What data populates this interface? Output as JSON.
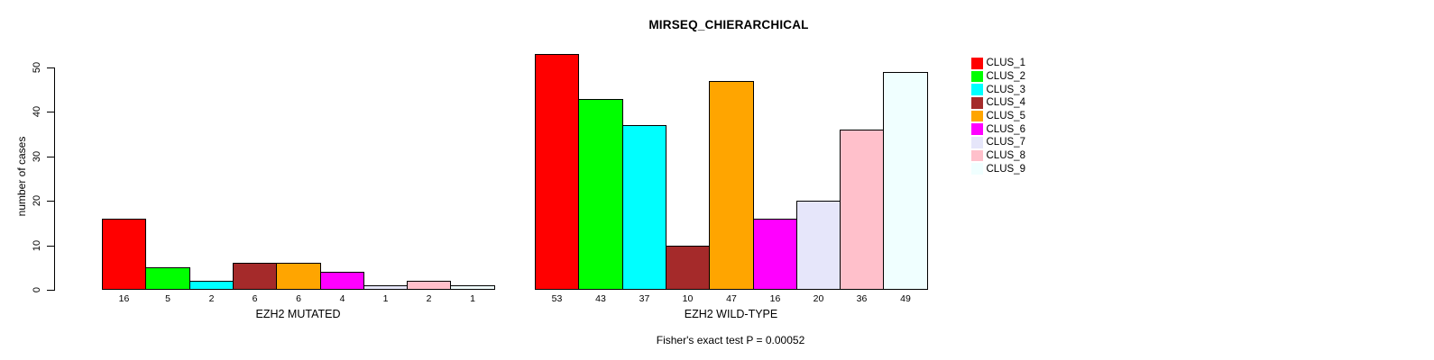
{
  "chart_data": {
    "type": "bar",
    "title": "MIRSEQ_CHIERARCHICAL",
    "ylabel": "number of cases",
    "ylim": [
      0,
      55
    ],
    "yticks": [
      0,
      10,
      20,
      30,
      40,
      50
    ],
    "grid": false,
    "legend_position": "right",
    "bar_value_labels": true,
    "groups": [
      {
        "label": "EZH2 MUTATED",
        "values": [
          16,
          5,
          2,
          6,
          6,
          4,
          1,
          2,
          1
        ]
      },
      {
        "label": "EZH2 WILD-TYPE",
        "values": [
          53,
          43,
          37,
          10,
          47,
          16,
          20,
          36,
          49
        ]
      }
    ],
    "series": [
      "CLUS_1",
      "CLUS_2",
      "CLUS_3",
      "CLUS_4",
      "CLUS_5",
      "CLUS_6",
      "CLUS_7",
      "CLUS_8",
      "CLUS_9"
    ],
    "colors": [
      "#FF0000",
      "#00FF00",
      "#00FFFF",
      "#A52A2A",
      "#FFA500",
      "#FF00FF",
      "#E6E6FA",
      "#FFC0CB",
      "#F0FFFF"
    ],
    "annotation": "Fisher's exact test P = 0.00052"
  }
}
